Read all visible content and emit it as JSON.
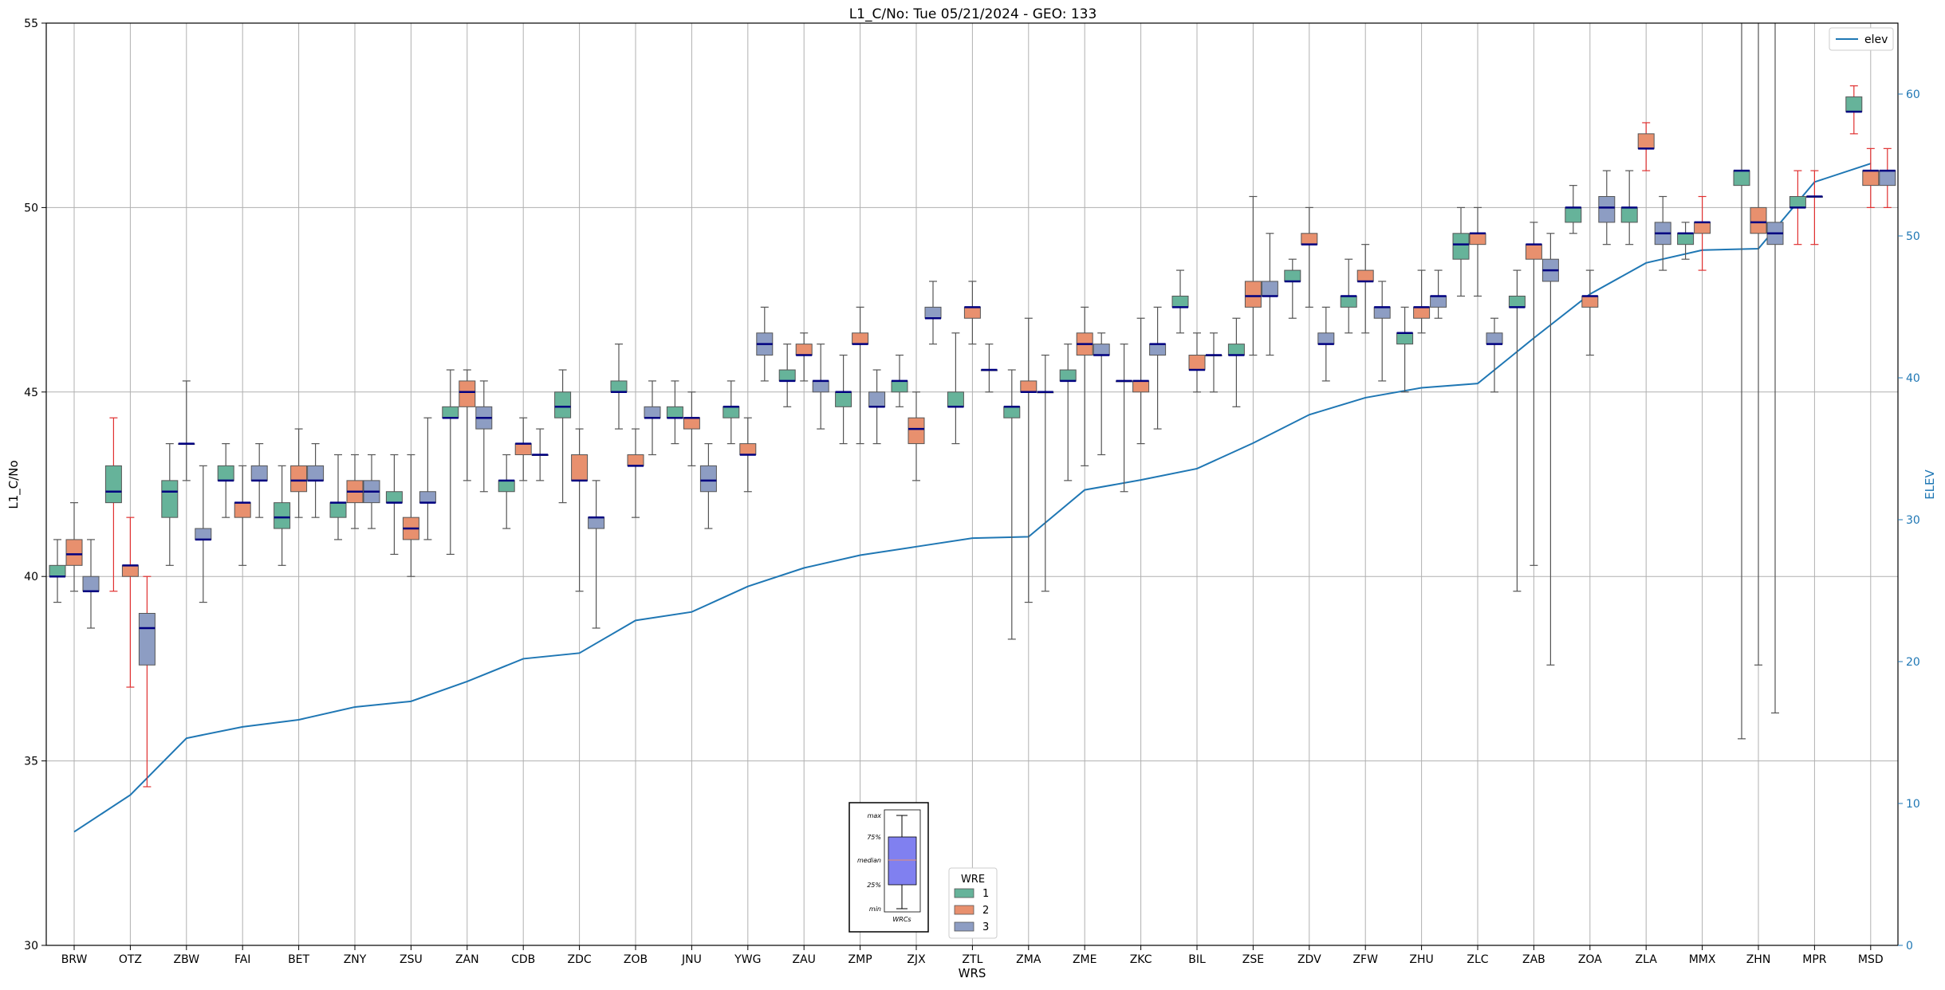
{
  "chart_data": {
    "type": "box",
    "title": "L1_C/No: Tue 05/21/2024 - GEO: 133",
    "xlabel": "WRS",
    "ylabel": "L1_C/No",
    "y2label": "ELEV",
    "ylim": [
      30,
      55
    ],
    "y2lim": [
      0,
      65
    ],
    "yticks": [
      30,
      35,
      40,
      45,
      50,
      55
    ],
    "y2ticks": [
      0,
      10,
      20,
      30,
      40,
      50,
      60
    ],
    "grid": true,
    "categories": [
      "BRW",
      "OTZ",
      "ZBW",
      "FAI",
      "BET",
      "ZNY",
      "ZSU",
      "ZAN",
      "CDB",
      "ZDC",
      "ZOB",
      "JNU",
      "YWG",
      "ZAU",
      "ZMP",
      "ZJX",
      "ZTL",
      "ZMA",
      "ZME",
      "ZKC",
      "BIL",
      "ZSE",
      "ZDV",
      "ZFW",
      "ZHU",
      "ZLC",
      "ZAB",
      "ZOA",
      "ZLA",
      "MMX",
      "ZHN",
      "MPR",
      "MSD"
    ],
    "colors": {
      "1": "#66b39a",
      "2": "#e8906e",
      "3": "#8d9dc3",
      "elev": "#1f77b4",
      "median": "#000080",
      "whisker_red": "#e03030",
      "whisker_grey": "#555555"
    },
    "legend": {
      "title": "WRE",
      "entries": [
        "1",
        "2",
        "3"
      ],
      "placement": "bottom-center"
    },
    "legend2": {
      "entries": [
        "elev"
      ],
      "placement": "top-right"
    },
    "inset_key": {
      "labels": [
        "max",
        "75%",
        "median",
        "25%",
        "min"
      ],
      "xlabel": "WRCs",
      "fill": "#8080f0"
    },
    "elev": [
      8,
      10.6,
      14.6,
      15.4,
      15.9,
      16.8,
      17.2,
      18.6,
      20.2,
      20.6,
      22.9,
      23.5,
      25.3,
      26.6,
      27.5,
      28.1,
      28.7,
      28.8,
      32.1,
      32.8,
      33.6,
      35.4,
      37.4,
      38.6,
      39.3,
      39.6,
      42.8,
      45.9,
      48.1,
      49.0,
      49.1,
      53.8,
      55.1
    ],
    "boxes": [
      {
        "site": "BRW",
        "wre": "1",
        "min": 39.3,
        "q1": 40.0,
        "med": 40.0,
        "q3": 40.3,
        "max": 41.0
      },
      {
        "site": "BRW",
        "wre": "2",
        "min": 39.6,
        "q1": 40.3,
        "med": 40.6,
        "q3": 41.0,
        "max": 42.0
      },
      {
        "site": "BRW",
        "wre": "3",
        "min": 38.6,
        "q1": 39.6,
        "med": 39.6,
        "q3": 40.0,
        "max": 41.0
      },
      {
        "site": "OTZ",
        "wre": "1",
        "min": 39.6,
        "q1": 42.0,
        "med": 42.3,
        "q3": 43.0,
        "max": 44.3,
        "red": true
      },
      {
        "site": "OTZ",
        "wre": "2",
        "min": 37.0,
        "q1": 40.0,
        "med": 40.3,
        "q3": 40.3,
        "max": 41.6,
        "red": true
      },
      {
        "site": "OTZ",
        "wre": "3",
        "min": 34.3,
        "q1": 37.6,
        "med": 38.6,
        "q3": 39.0,
        "max": 40.0,
        "red": true
      },
      {
        "site": "ZBW",
        "wre": "1",
        "min": 40.3,
        "q1": 41.6,
        "med": 42.3,
        "q3": 42.6,
        "max": 43.6
      },
      {
        "site": "ZBW",
        "wre": "2",
        "min": 42.6,
        "q1": 43.6,
        "med": 43.6,
        "q3": 43.6,
        "max": 45.3
      },
      {
        "site": "ZBW",
        "wre": "3",
        "min": 39.3,
        "q1": 41.0,
        "med": 41.0,
        "q3": 41.3,
        "max": 43.0
      },
      {
        "site": "FAI",
        "wre": "1",
        "min": 41.6,
        "q1": 42.6,
        "med": 42.6,
        "q3": 43.0,
        "max": 43.6
      },
      {
        "site": "FAI",
        "wre": "2",
        "min": 40.3,
        "q1": 41.6,
        "med": 42.0,
        "q3": 42.0,
        "max": 43.0
      },
      {
        "site": "FAI",
        "wre": "3",
        "min": 41.6,
        "q1": 42.6,
        "med": 42.6,
        "q3": 43.0,
        "max": 43.6
      },
      {
        "site": "BET",
        "wre": "1",
        "min": 40.3,
        "q1": 41.3,
        "med": 41.6,
        "q3": 42.0,
        "max": 43.0
      },
      {
        "site": "BET",
        "wre": "2",
        "min": 41.6,
        "q1": 42.3,
        "med": 42.6,
        "q3": 43.0,
        "max": 44.0
      },
      {
        "site": "BET",
        "wre": "3",
        "min": 41.6,
        "q1": 42.6,
        "med": 42.6,
        "q3": 43.0,
        "max": 43.6
      },
      {
        "site": "ZNY",
        "wre": "1",
        "min": 41.0,
        "q1": 41.6,
        "med": 42.0,
        "q3": 42.0,
        "max": 43.3
      },
      {
        "site": "ZNY",
        "wre": "2",
        "min": 41.3,
        "q1": 42.0,
        "med": 42.3,
        "q3": 42.6,
        "max": 43.3
      },
      {
        "site": "ZNY",
        "wre": "3",
        "min": 41.3,
        "q1": 42.0,
        "med": 42.3,
        "q3": 42.6,
        "max": 43.3
      },
      {
        "site": "ZSU",
        "wre": "1",
        "min": 40.6,
        "q1": 42.0,
        "med": 42.0,
        "q3": 42.3,
        "max": 43.3
      },
      {
        "site": "ZSU",
        "wre": "2",
        "min": 40.0,
        "q1": 41.0,
        "med": 41.3,
        "q3": 41.6,
        "max": 43.3
      },
      {
        "site": "ZSU",
        "wre": "3",
        "min": 41.0,
        "q1": 42.0,
        "med": 42.0,
        "q3": 42.3,
        "max": 44.3
      },
      {
        "site": "ZAN",
        "wre": "1",
        "min": 40.6,
        "q1": 44.3,
        "med": 44.3,
        "q3": 44.6,
        "max": 45.6
      },
      {
        "site": "ZAN",
        "wre": "2",
        "min": 42.6,
        "q1": 44.6,
        "med": 45.0,
        "q3": 45.3,
        "max": 45.6
      },
      {
        "site": "ZAN",
        "wre": "3",
        "min": 42.3,
        "q1": 44.0,
        "med": 44.3,
        "q3": 44.6,
        "max": 45.3
      },
      {
        "site": "CDB",
        "wre": "1",
        "min": 41.3,
        "q1": 42.3,
        "med": 42.6,
        "q3": 42.6,
        "max": 43.3
      },
      {
        "site": "CDB",
        "wre": "2",
        "min": 42.6,
        "q1": 43.3,
        "med": 43.6,
        "q3": 43.6,
        "max": 44.3
      },
      {
        "site": "CDB",
        "wre": "3",
        "min": 42.6,
        "q1": 43.3,
        "med": 43.3,
        "q3": 43.3,
        "max": 44.0
      },
      {
        "site": "ZDC",
        "wre": "1",
        "min": 42.0,
        "q1": 44.3,
        "med": 44.6,
        "q3": 45.0,
        "max": 45.6
      },
      {
        "site": "ZDC",
        "wre": "2",
        "min": 39.6,
        "q1": 42.6,
        "med": 42.6,
        "q3": 43.3,
        "max": 44.0
      },
      {
        "site": "ZDC",
        "wre": "3",
        "min": 38.6,
        "q1": 41.3,
        "med": 41.6,
        "q3": 41.6,
        "max": 42.6
      },
      {
        "site": "ZOB",
        "wre": "1",
        "min": 44.0,
        "q1": 45.0,
        "med": 45.0,
        "q3": 45.3,
        "max": 46.3
      },
      {
        "site": "ZOB",
        "wre": "2",
        "min": 41.6,
        "q1": 43.0,
        "med": 43.0,
        "q3": 43.3,
        "max": 44.0
      },
      {
        "site": "ZOB",
        "wre": "3",
        "min": 43.3,
        "q1": 44.3,
        "med": 44.3,
        "q3": 44.6,
        "max": 45.3
      },
      {
        "site": "JNU",
        "wre": "1",
        "min": 43.6,
        "q1": 44.3,
        "med": 44.3,
        "q3": 44.6,
        "max": 45.3
      },
      {
        "site": "JNU",
        "wre": "2",
        "min": 43.0,
        "q1": 44.0,
        "med": 44.3,
        "q3": 44.3,
        "max": 45.0
      },
      {
        "site": "JNU",
        "wre": "3",
        "min": 41.3,
        "q1": 42.3,
        "med": 42.6,
        "q3": 43.0,
        "max": 43.6
      },
      {
        "site": "YWG",
        "wre": "1",
        "min": 43.6,
        "q1": 44.3,
        "med": 44.6,
        "q3": 44.6,
        "max": 45.3
      },
      {
        "site": "YWG",
        "wre": "2",
        "min": 42.3,
        "q1": 43.3,
        "med": 43.3,
        "q3": 43.6,
        "max": 44.3
      },
      {
        "site": "YWG",
        "wre": "3",
        "min": 45.3,
        "q1": 46.0,
        "med": 46.3,
        "q3": 46.6,
        "max": 47.3
      },
      {
        "site": "ZAU",
        "wre": "1",
        "min": 44.6,
        "q1": 45.3,
        "med": 45.3,
        "q3": 45.6,
        "max": 46.3
      },
      {
        "site": "ZAU",
        "wre": "2",
        "min": 45.3,
        "q1": 46.0,
        "med": 46.0,
        "q3": 46.3,
        "max": 46.6
      },
      {
        "site": "ZAU",
        "wre": "3",
        "min": 44.0,
        "q1": 45.0,
        "med": 45.3,
        "q3": 45.3,
        "max": 46.3
      },
      {
        "site": "ZMP",
        "wre": "1",
        "min": 43.6,
        "q1": 44.6,
        "med": 45.0,
        "q3": 45.0,
        "max": 46.0
      },
      {
        "site": "ZMP",
        "wre": "2",
        "min": 43.6,
        "q1": 46.3,
        "med": 46.3,
        "q3": 46.6,
        "max": 47.3
      },
      {
        "site": "ZMP",
        "wre": "3",
        "min": 43.6,
        "q1": 44.6,
        "med": 44.6,
        "q3": 45.0,
        "max": 45.6
      },
      {
        "site": "ZJX",
        "wre": "1",
        "min": 44.6,
        "q1": 45.0,
        "med": 45.3,
        "q3": 45.3,
        "max": 46.0
      },
      {
        "site": "ZJX",
        "wre": "2",
        "min": 42.6,
        "q1": 43.6,
        "med": 44.0,
        "q3": 44.3,
        "max": 45.0
      },
      {
        "site": "ZJX",
        "wre": "3",
        "min": 46.3,
        "q1": 47.0,
        "med": 47.0,
        "q3": 47.3,
        "max": 48.0
      },
      {
        "site": "ZTL",
        "wre": "1",
        "min": 43.6,
        "q1": 44.6,
        "med": 44.6,
        "q3": 45.0,
        "max": 46.6
      },
      {
        "site": "ZTL",
        "wre": "2",
        "min": 46.3,
        "q1": 47.0,
        "med": 47.3,
        "q3": 47.3,
        "max": 48.0
      },
      {
        "site": "ZTL",
        "wre": "3",
        "min": 45.0,
        "q1": 45.6,
        "med": 45.6,
        "q3": 45.6,
        "max": 46.3
      },
      {
        "site": "ZMA",
        "wre": "1",
        "min": 38.3,
        "q1": 44.3,
        "med": 44.6,
        "q3": 44.6,
        "max": 45.6
      },
      {
        "site": "ZMA",
        "wre": "2",
        "min": 39.3,
        "q1": 45.0,
        "med": 45.0,
        "q3": 45.3,
        "max": 47.0
      },
      {
        "site": "ZMA",
        "wre": "3",
        "min": 39.6,
        "q1": 45.0,
        "med": 45.0,
        "q3": 45.0,
        "max": 46.0
      },
      {
        "site": "ZME",
        "wre": "1",
        "min": 42.6,
        "q1": 45.3,
        "med": 45.3,
        "q3": 45.6,
        "max": 46.3
      },
      {
        "site": "ZME",
        "wre": "2",
        "min": 43.0,
        "q1": 46.0,
        "med": 46.3,
        "q3": 46.6,
        "max": 47.3
      },
      {
        "site": "ZME",
        "wre": "3",
        "min": 43.3,
        "q1": 46.0,
        "med": 46.0,
        "q3": 46.3,
        "max": 46.6
      },
      {
        "site": "ZKC",
        "wre": "1",
        "min": 42.3,
        "q1": 45.3,
        "med": 45.3,
        "q3": 45.3,
        "max": 46.3
      },
      {
        "site": "ZKC",
        "wre": "2",
        "min": 43.6,
        "q1": 45.0,
        "med": 45.3,
        "q3": 45.3,
        "max": 47.0
      },
      {
        "site": "ZKC",
        "wre": "3",
        "min": 44.0,
        "q1": 46.0,
        "med": 46.3,
        "q3": 46.3,
        "max": 47.3
      },
      {
        "site": "BIL",
        "wre": "1",
        "min": 46.6,
        "q1": 47.3,
        "med": 47.3,
        "q3": 47.6,
        "max": 48.3
      },
      {
        "site": "BIL",
        "wre": "2",
        "min": 45.0,
        "q1": 45.6,
        "med": 45.6,
        "q3": 46.0,
        "max": 46.6
      },
      {
        "site": "BIL",
        "wre": "3",
        "min": 45.0,
        "q1": 46.0,
        "med": 46.0,
        "q3": 46.0,
        "max": 46.6
      },
      {
        "site": "ZSE",
        "wre": "1",
        "min": 44.6,
        "q1": 46.0,
        "med": 46.0,
        "q3": 46.3,
        "max": 47.0
      },
      {
        "site": "ZSE",
        "wre": "2",
        "min": 46.0,
        "q1": 47.3,
        "med": 47.6,
        "q3": 48.0,
        "max": 50.3
      },
      {
        "site": "ZSE",
        "wre": "3",
        "min": 46.0,
        "q1": 47.6,
        "med": 47.6,
        "q3": 48.0,
        "max": 49.3
      },
      {
        "site": "ZDV",
        "wre": "1",
        "min": 47.0,
        "q1": 48.0,
        "med": 48.0,
        "q3": 48.3,
        "max": 48.6
      },
      {
        "site": "ZDV",
        "wre": "2",
        "min": 47.3,
        "q1": 49.0,
        "med": 49.0,
        "q3": 49.3,
        "max": 50.0
      },
      {
        "site": "ZDV",
        "wre": "3",
        "min": 45.3,
        "q1": 46.3,
        "med": 46.3,
        "q3": 46.6,
        "max": 47.3
      },
      {
        "site": "ZFW",
        "wre": "1",
        "min": 46.6,
        "q1": 47.3,
        "med": 47.6,
        "q3": 47.6,
        "max": 48.6
      },
      {
        "site": "ZFW",
        "wre": "2",
        "min": 46.6,
        "q1": 48.0,
        "med": 48.0,
        "q3": 48.3,
        "max": 49.0
      },
      {
        "site": "ZFW",
        "wre": "3",
        "min": 45.3,
        "q1": 47.0,
        "med": 47.3,
        "q3": 47.3,
        "max": 48.0
      },
      {
        "site": "ZHU",
        "wre": "1",
        "min": 45.0,
        "q1": 46.3,
        "med": 46.6,
        "q3": 46.6,
        "max": 47.3
      },
      {
        "site": "ZHU",
        "wre": "2",
        "min": 46.6,
        "q1": 47.0,
        "med": 47.3,
        "q3": 47.3,
        "max": 48.3
      },
      {
        "site": "ZHU",
        "wre": "3",
        "min": 47.0,
        "q1": 47.3,
        "med": 47.6,
        "q3": 47.6,
        "max": 48.3
      },
      {
        "site": "ZLC",
        "wre": "1",
        "min": 47.6,
        "q1": 48.6,
        "med": 49.0,
        "q3": 49.3,
        "max": 50.0
      },
      {
        "site": "ZLC",
        "wre": "2",
        "min": 47.6,
        "q1": 49.0,
        "med": 49.3,
        "q3": 49.3,
        "max": 50.0
      },
      {
        "site": "ZLC",
        "wre": "3",
        "min": 45.0,
        "q1": 46.3,
        "med": 46.3,
        "q3": 46.6,
        "max": 47.0
      },
      {
        "site": "ZAB",
        "wre": "1",
        "min": 39.6,
        "q1": 47.3,
        "med": 47.3,
        "q3": 47.6,
        "max": 48.3
      },
      {
        "site": "ZAB",
        "wre": "2",
        "min": 40.3,
        "q1": 48.6,
        "med": 49.0,
        "q3": 49.0,
        "max": 49.6
      },
      {
        "site": "ZAB",
        "wre": "3",
        "min": 37.6,
        "q1": 48.0,
        "med": 48.3,
        "q3": 48.6,
        "max": 49.3
      },
      {
        "site": "ZOA",
        "wre": "1",
        "min": 49.3,
        "q1": 49.6,
        "med": 50.0,
        "q3": 50.0,
        "max": 50.6
      },
      {
        "site": "ZOA",
        "wre": "2",
        "min": 46.0,
        "q1": 47.3,
        "med": 47.6,
        "q3": 47.6,
        "max": 48.3
      },
      {
        "site": "ZOA",
        "wre": "3",
        "min": 49.0,
        "q1": 49.6,
        "med": 50.0,
        "q3": 50.3,
        "max": 51.0
      },
      {
        "site": "ZLA",
        "wre": "1",
        "min": 49.0,
        "q1": 49.6,
        "med": 50.0,
        "q3": 50.0,
        "max": 51.0
      },
      {
        "site": "ZLA",
        "wre": "2",
        "min": 51.0,
        "q1": 51.6,
        "med": 51.6,
        "q3": 52.0,
        "max": 52.3,
        "red": true
      },
      {
        "site": "ZLA",
        "wre": "3",
        "min": 48.3,
        "q1": 49.0,
        "med": 49.3,
        "q3": 49.6,
        "max": 50.3
      },
      {
        "site": "MMX",
        "wre": "1",
        "min": 48.6,
        "q1": 49.0,
        "med": 49.3,
        "q3": 49.3,
        "max": 49.6
      },
      {
        "site": "MMX",
        "wre": "2",
        "min": 48.3,
        "q1": 49.3,
        "med": 49.6,
        "q3": 49.6,
        "max": 50.3,
        "red": true
      },
      {
        "site": "ZHN",
        "wre": "1",
        "min": 35.6,
        "q1": 50.6,
        "med": 51.0,
        "q3": 51.0,
        "max": 55.0
      },
      {
        "site": "ZHN",
        "wre": "2",
        "min": 37.6,
        "q1": 49.3,
        "med": 49.6,
        "q3": 50.0,
        "max": 55.0
      },
      {
        "site": "ZHN",
        "wre": "3",
        "min": 36.3,
        "q1": 49.0,
        "med": 49.3,
        "q3": 49.6,
        "max": 55.0
      },
      {
        "site": "MPR",
        "wre": "1",
        "min": 49.0,
        "q1": 50.0,
        "med": 50.0,
        "q3": 50.3,
        "max": 51.0,
        "red": true
      },
      {
        "site": "MPR",
        "wre": "2",
        "min": 49.0,
        "q1": 50.3,
        "med": 50.3,
        "q3": 50.3,
        "max": 51.0,
        "red": true
      },
      {
        "site": "MSD",
        "wre": "1",
        "min": 52.0,
        "q1": 52.6,
        "med": 52.6,
        "q3": 53.0,
        "max": 53.3,
        "red": true
      },
      {
        "site": "MSD",
        "wre": "2",
        "min": 50.0,
        "q1": 50.6,
        "med": 51.0,
        "q3": 51.0,
        "max": 51.6,
        "red": true
      },
      {
        "site": "MSD",
        "wre": "3",
        "min": 50.0,
        "q1": 50.6,
        "med": 51.0,
        "q3": 51.0,
        "max": 51.6,
        "red": true
      }
    ]
  }
}
